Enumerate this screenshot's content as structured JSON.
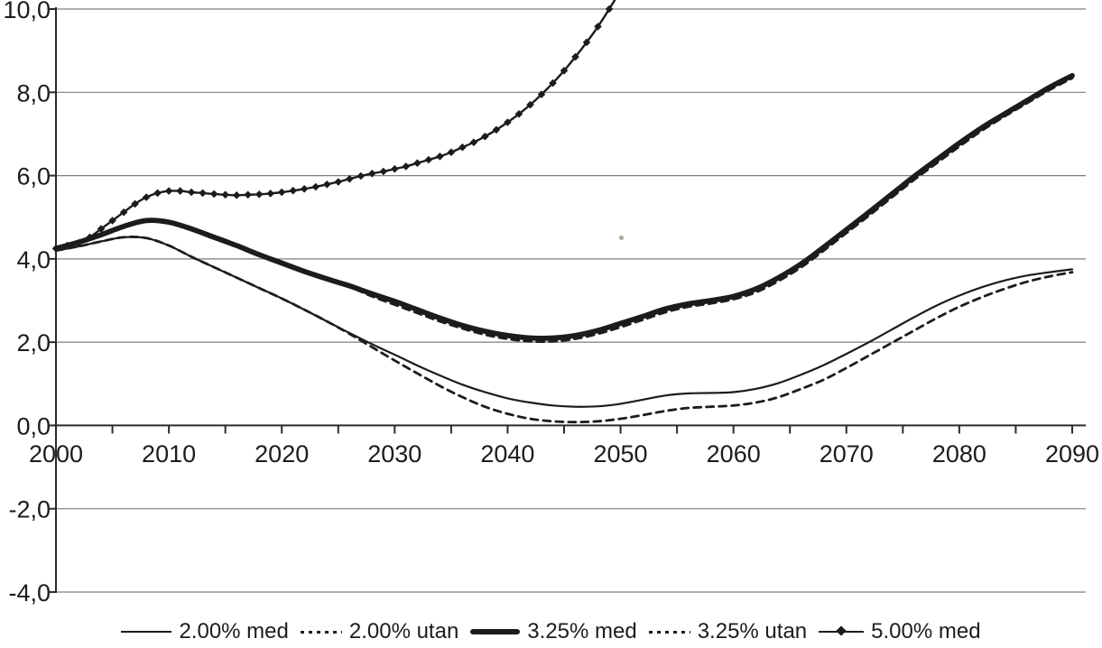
{
  "colors": {
    "line": "#1c1c1c",
    "grid": "#7e7e7e",
    "axis": "#2b2b2b",
    "background": "#ffffff",
    "label": "#1c1c1c"
  },
  "chart_data": {
    "type": "line",
    "title": "",
    "xlabel": "",
    "ylabel": "",
    "grid": "horizontal-only",
    "legend_position": "bottom",
    "x_axis": {
      "min": 2000,
      "max": 2090,
      "major_tick_years": [
        2000,
        2010,
        2020,
        2030,
        2040,
        2050,
        2060,
        2070,
        2080,
        2090
      ],
      "major_tick_labels": [
        "2000",
        "2010",
        "2020",
        "2030",
        "2040",
        "2050",
        "2060",
        "2070",
        "2080",
        "2090"
      ],
      "minor_tick_step": 5
    },
    "y_axis": {
      "min": -4,
      "max": 10,
      "tick_values": [
        10,
        8,
        6,
        4,
        2,
        0,
        -2,
        -4
      ],
      "tick_labels": [
        "10,0",
        "8,0",
        "6,0",
        "4,0",
        "2,0",
        "0,0",
        "-2,0",
        "-4,0"
      ]
    },
    "series": [
      {
        "name": "2.00% med",
        "style": "solid-thin",
        "points": [
          [
            2000,
            4.2
          ],
          [
            2002,
            4.3
          ],
          [
            2004,
            4.42
          ],
          [
            2006,
            4.52
          ],
          [
            2008,
            4.5
          ],
          [
            2010,
            4.32
          ],
          [
            2012,
            4.05
          ],
          [
            2014,
            3.8
          ],
          [
            2016,
            3.55
          ],
          [
            2018,
            3.3
          ],
          [
            2020,
            3.05
          ],
          [
            2022,
            2.78
          ],
          [
            2024,
            2.5
          ],
          [
            2026,
            2.22
          ],
          [
            2028,
            1.95
          ],
          [
            2030,
            1.7
          ],
          [
            2032,
            1.44
          ],
          [
            2034,
            1.2
          ],
          [
            2036,
            0.98
          ],
          [
            2038,
            0.8
          ],
          [
            2040,
            0.65
          ],
          [
            2042,
            0.55
          ],
          [
            2044,
            0.48
          ],
          [
            2046,
            0.45
          ],
          [
            2048,
            0.46
          ],
          [
            2050,
            0.52
          ],
          [
            2052,
            0.62
          ],
          [
            2054,
            0.72
          ],
          [
            2056,
            0.77
          ],
          [
            2058,
            0.78
          ],
          [
            2060,
            0.8
          ],
          [
            2062,
            0.88
          ],
          [
            2064,
            1.02
          ],
          [
            2066,
            1.22
          ],
          [
            2068,
            1.45
          ],
          [
            2070,
            1.72
          ],
          [
            2072,
            2.0
          ],
          [
            2074,
            2.3
          ],
          [
            2076,
            2.6
          ],
          [
            2078,
            2.88
          ],
          [
            2080,
            3.12
          ],
          [
            2082,
            3.32
          ],
          [
            2084,
            3.48
          ],
          [
            2086,
            3.6
          ],
          [
            2088,
            3.68
          ],
          [
            2090,
            3.75
          ]
        ]
      },
      {
        "name": "2.00% utan",
        "style": "dashed",
        "points": [
          [
            2000,
            4.2
          ],
          [
            2002,
            4.3
          ],
          [
            2004,
            4.42
          ],
          [
            2006,
            4.52
          ],
          [
            2008,
            4.5
          ],
          [
            2010,
            4.32
          ],
          [
            2012,
            4.05
          ],
          [
            2014,
            3.8
          ],
          [
            2016,
            3.55
          ],
          [
            2018,
            3.3
          ],
          [
            2020,
            3.05
          ],
          [
            2022,
            2.78
          ],
          [
            2024,
            2.5
          ],
          [
            2026,
            2.2
          ],
          [
            2028,
            1.88
          ],
          [
            2030,
            1.56
          ],
          [
            2032,
            1.25
          ],
          [
            2034,
            0.95
          ],
          [
            2036,
            0.68
          ],
          [
            2038,
            0.45
          ],
          [
            2040,
            0.28
          ],
          [
            2042,
            0.16
          ],
          [
            2044,
            0.1
          ],
          [
            2046,
            0.08
          ],
          [
            2048,
            0.1
          ],
          [
            2050,
            0.16
          ],
          [
            2052,
            0.25
          ],
          [
            2054,
            0.35
          ],
          [
            2056,
            0.42
          ],
          [
            2058,
            0.45
          ],
          [
            2060,
            0.48
          ],
          [
            2062,
            0.55
          ],
          [
            2064,
            0.68
          ],
          [
            2066,
            0.88
          ],
          [
            2068,
            1.1
          ],
          [
            2070,
            1.38
          ],
          [
            2072,
            1.68
          ],
          [
            2074,
            1.98
          ],
          [
            2076,
            2.28
          ],
          [
            2078,
            2.58
          ],
          [
            2080,
            2.85
          ],
          [
            2082,
            3.08
          ],
          [
            2084,
            3.28
          ],
          [
            2086,
            3.45
          ],
          [
            2088,
            3.58
          ],
          [
            2090,
            3.68
          ]
        ]
      },
      {
        "name": "3.25% med",
        "style": "solid-thick",
        "points": [
          [
            2000,
            4.25
          ],
          [
            2002,
            4.4
          ],
          [
            2004,
            4.58
          ],
          [
            2006,
            4.78
          ],
          [
            2008,
            4.92
          ],
          [
            2010,
            4.88
          ],
          [
            2012,
            4.72
          ],
          [
            2014,
            4.52
          ],
          [
            2016,
            4.32
          ],
          [
            2018,
            4.1
          ],
          [
            2020,
            3.9
          ],
          [
            2022,
            3.7
          ],
          [
            2024,
            3.52
          ],
          [
            2026,
            3.35
          ],
          [
            2028,
            3.16
          ],
          [
            2030,
            2.98
          ],
          [
            2032,
            2.78
          ],
          [
            2034,
            2.58
          ],
          [
            2036,
            2.4
          ],
          [
            2038,
            2.26
          ],
          [
            2040,
            2.16
          ],
          [
            2042,
            2.1
          ],
          [
            2044,
            2.1
          ],
          [
            2046,
            2.16
          ],
          [
            2048,
            2.28
          ],
          [
            2050,
            2.45
          ],
          [
            2052,
            2.62
          ],
          [
            2054,
            2.8
          ],
          [
            2056,
            2.92
          ],
          [
            2058,
            3.0
          ],
          [
            2060,
            3.1
          ],
          [
            2062,
            3.28
          ],
          [
            2064,
            3.55
          ],
          [
            2066,
            3.88
          ],
          [
            2068,
            4.28
          ],
          [
            2070,
            4.7
          ],
          [
            2072,
            5.12
          ],
          [
            2074,
            5.55
          ],
          [
            2076,
            5.98
          ],
          [
            2078,
            6.38
          ],
          [
            2080,
            6.78
          ],
          [
            2082,
            7.15
          ],
          [
            2084,
            7.48
          ],
          [
            2086,
            7.8
          ],
          [
            2088,
            8.12
          ],
          [
            2090,
            8.4
          ]
        ]
      },
      {
        "name": "3.25% utan",
        "style": "dashed",
        "points": [
          [
            2000,
            4.25
          ],
          [
            2002,
            4.4
          ],
          [
            2004,
            4.58
          ],
          [
            2006,
            4.78
          ],
          [
            2008,
            4.92
          ],
          [
            2010,
            4.88
          ],
          [
            2012,
            4.72
          ],
          [
            2014,
            4.52
          ],
          [
            2016,
            4.32
          ],
          [
            2018,
            4.1
          ],
          [
            2020,
            3.9
          ],
          [
            2022,
            3.7
          ],
          [
            2024,
            3.52
          ],
          [
            2026,
            3.33
          ],
          [
            2028,
            3.1
          ],
          [
            2030,
            2.9
          ],
          [
            2032,
            2.7
          ],
          [
            2034,
            2.5
          ],
          [
            2036,
            2.33
          ],
          [
            2038,
            2.18
          ],
          [
            2040,
            2.08
          ],
          [
            2042,
            2.02
          ],
          [
            2044,
            2.02
          ],
          [
            2046,
            2.08
          ],
          [
            2048,
            2.2
          ],
          [
            2050,
            2.36
          ],
          [
            2052,
            2.54
          ],
          [
            2054,
            2.72
          ],
          [
            2056,
            2.85
          ],
          [
            2058,
            2.93
          ],
          [
            2060,
            3.03
          ],
          [
            2062,
            3.2
          ],
          [
            2064,
            3.47
          ],
          [
            2066,
            3.8
          ],
          [
            2068,
            4.2
          ],
          [
            2070,
            4.62
          ],
          [
            2072,
            5.04
          ],
          [
            2074,
            5.47
          ],
          [
            2076,
            5.9
          ],
          [
            2078,
            6.3
          ],
          [
            2080,
            6.7
          ],
          [
            2082,
            7.08
          ],
          [
            2084,
            7.42
          ],
          [
            2086,
            7.74
          ],
          [
            2088,
            8.06
          ],
          [
            2090,
            8.34
          ]
        ]
      },
      {
        "name": "5.00% med",
        "style": "solid-markers",
        "marker": "diamond",
        "points": [
          [
            2000,
            4.25
          ],
          [
            2001,
            4.32
          ],
          [
            2002,
            4.38
          ],
          [
            2003,
            4.52
          ],
          [
            2004,
            4.72
          ],
          [
            2005,
            4.92
          ],
          [
            2006,
            5.12
          ],
          [
            2007,
            5.32
          ],
          [
            2008,
            5.48
          ],
          [
            2009,
            5.58
          ],
          [
            2010,
            5.63
          ],
          [
            2011,
            5.63
          ],
          [
            2012,
            5.6
          ],
          [
            2013,
            5.58
          ],
          [
            2014,
            5.56
          ],
          [
            2015,
            5.54
          ],
          [
            2016,
            5.53
          ],
          [
            2017,
            5.54
          ],
          [
            2018,
            5.55
          ],
          [
            2019,
            5.57
          ],
          [
            2020,
            5.6
          ],
          [
            2021,
            5.64
          ],
          [
            2022,
            5.68
          ],
          [
            2023,
            5.73
          ],
          [
            2024,
            5.79
          ],
          [
            2025,
            5.85
          ],
          [
            2026,
            5.92
          ],
          [
            2027,
            5.99
          ],
          [
            2028,
            6.05
          ],
          [
            2029,
            6.1
          ],
          [
            2030,
            6.16
          ],
          [
            2031,
            6.22
          ],
          [
            2032,
            6.3
          ],
          [
            2033,
            6.38
          ],
          [
            2034,
            6.46
          ],
          [
            2035,
            6.56
          ],
          [
            2036,
            6.68
          ],
          [
            2037,
            6.8
          ],
          [
            2038,
            6.94
          ],
          [
            2039,
            7.1
          ],
          [
            2040,
            7.28
          ],
          [
            2041,
            7.48
          ],
          [
            2042,
            7.7
          ],
          [
            2043,
            7.95
          ],
          [
            2044,
            8.22
          ],
          [
            2045,
            8.52
          ],
          [
            2046,
            8.85
          ],
          [
            2047,
            9.2
          ],
          [
            2048,
            9.58
          ],
          [
            2049,
            10.0
          ],
          [
            2050,
            10.45
          ]
        ]
      }
    ]
  }
}
